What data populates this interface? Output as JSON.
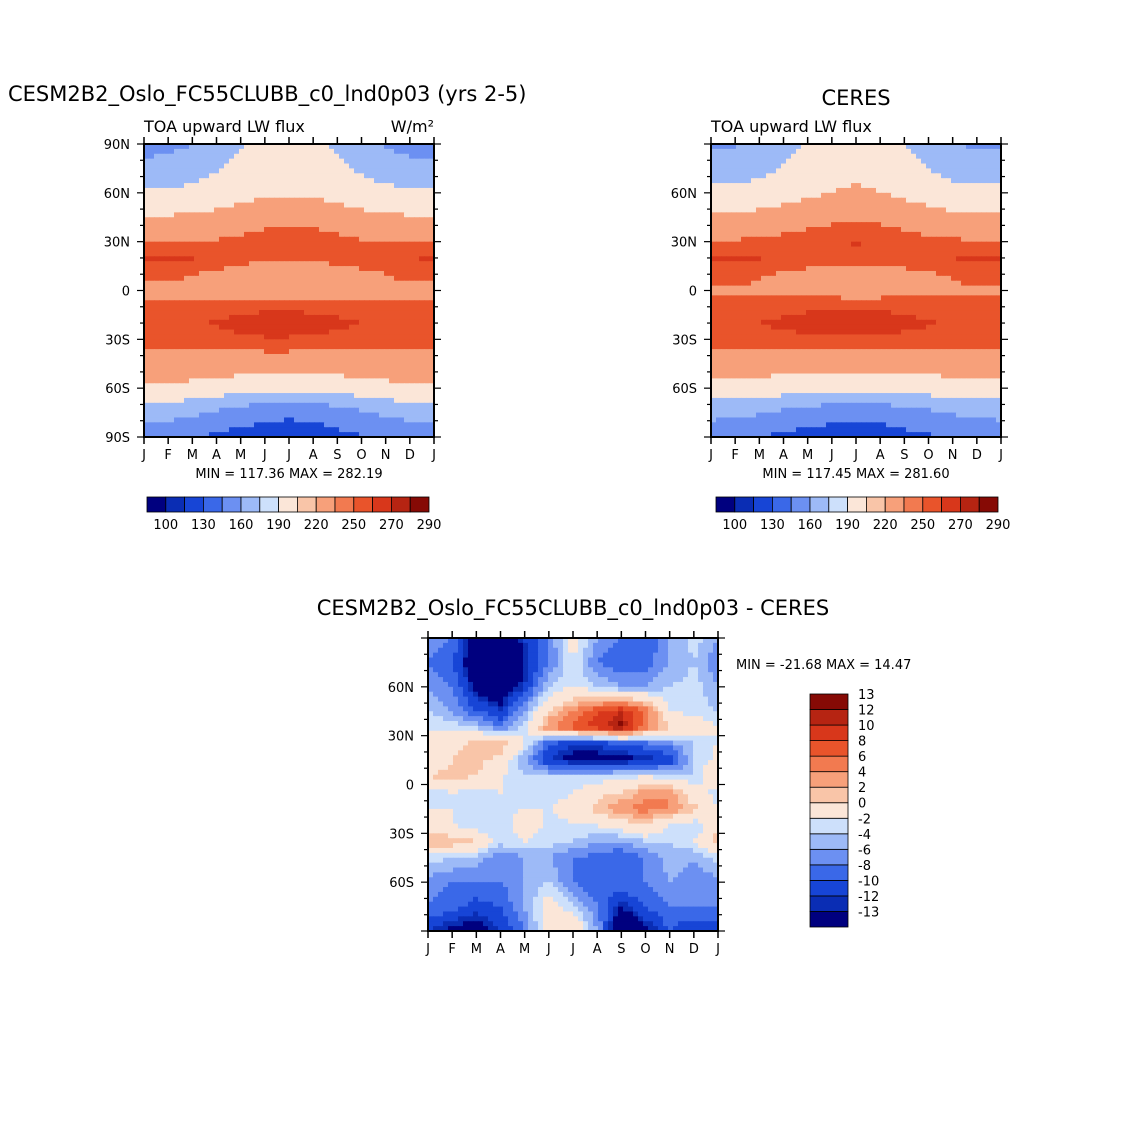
{
  "chart_data": [
    {
      "type": "heatmap",
      "id": "model",
      "title": "CESM2B2_Oslo_FC55CLUBB_c0_lnd0p03 (yrs 2-5)",
      "variable": "TOA upward LW flux",
      "units": "W/m²",
      "x_ticks": [
        "J",
        "F",
        "M",
        "A",
        "M",
        "J",
        "J",
        "A",
        "S",
        "O",
        "N",
        "D",
        "J"
      ],
      "y_ticks": [
        "90N",
        "60N",
        "30N",
        "0",
        "30S",
        "60S",
        "90S"
      ],
      "ylim": [
        -90,
        90
      ],
      "stats": "MIN = 117.36 MAX = 282.19",
      "levels": [
        "100",
        "130",
        "160",
        "190",
        "220",
        "250",
        "270",
        "290"
      ],
      "colors": [
        "#00007f",
        "#0a2db4",
        "#1745d6",
        "#3a68e8",
        "#6c90f2",
        "#9dbaf7",
        "#cde0fb",
        "#fbe6d8",
        "#f9c5a8",
        "#f7a07a",
        "#f27a50",
        "#e9542b",
        "#d8371b",
        "#b62412",
        "#860a05"
      ],
      "rows": [
        {
          "lat": 90,
          "value": [
            150,
            152,
            160,
            172,
            188,
            200,
            205,
            200,
            185,
            170,
            158,
            150,
            150
          ]
        },
        {
          "lat": 75,
          "value": [
            168,
            170,
            178,
            188,
            200,
            210,
            215,
            210,
            198,
            185,
            175,
            168,
            168
          ]
        },
        {
          "lat": 60,
          "value": [
            195,
            195,
            198,
            202,
            210,
            215,
            218,
            216,
            210,
            203,
            198,
            195,
            195
          ]
        },
        {
          "lat": 45,
          "value": [
            222,
            222,
            225,
            228,
            234,
            238,
            240,
            238,
            232,
            228,
            224,
            222,
            222
          ]
        },
        {
          "lat": 30,
          "value": [
            248,
            248,
            250,
            252,
            256,
            262,
            270,
            265,
            258,
            252,
            250,
            248,
            248
          ]
        },
        {
          "lat": 20,
          "value": [
            272,
            275,
            272,
            265,
            258,
            255,
            255,
            256,
            258,
            262,
            266,
            270,
            272
          ]
        },
        {
          "lat": 10,
          "value": [
            255,
            255,
            250,
            245,
            238,
            232,
            230,
            232,
            238,
            245,
            250,
            255,
            255
          ]
        },
        {
          "lat": 0,
          "value": [
            245,
            245,
            243,
            240,
            236,
            232,
            230,
            232,
            236,
            240,
            243,
            245,
            245
          ]
        },
        {
          "lat": -10,
          "value": [
            252,
            252,
            255,
            258,
            262,
            265,
            265,
            264,
            262,
            258,
            255,
            252,
            252
          ]
        },
        {
          "lat": -20,
          "value": [
            262,
            262,
            266,
            272,
            278,
            282,
            282,
            280,
            275,
            270,
            265,
            262,
            262
          ]
        },
        {
          "lat": -30,
          "value": [
            258,
            258,
            260,
            262,
            265,
            268,
            268,
            266,
            263,
            260,
            258,
            258,
            258
          ]
        },
        {
          "lat": -45,
          "value": [
            238,
            238,
            238,
            236,
            234,
            232,
            232,
            232,
            234,
            236,
            238,
            238,
            238
          ]
        },
        {
          "lat": -60,
          "value": [
            215,
            215,
            212,
            208,
            204,
            200,
            200,
            200,
            204,
            208,
            212,
            215,
            215
          ]
        },
        {
          "lat": -75,
          "value": [
            175,
            172,
            165,
            155,
            145,
            138,
            135,
            138,
            145,
            155,
            165,
            172,
            175
          ]
        },
        {
          "lat": -90,
          "value": [
            140,
            138,
            132,
            125,
            120,
            118,
            117,
            118,
            122,
            128,
            134,
            138,
            140
          ]
        }
      ]
    },
    {
      "type": "heatmap",
      "id": "obs",
      "title": "CERES",
      "variable": "TOA upward LW flux",
      "x_ticks": [
        "J",
        "F",
        "M",
        "A",
        "M",
        "J",
        "J",
        "A",
        "S",
        "O",
        "N",
        "D",
        "J"
      ],
      "y_ticks": [
        "60N",
        "30N",
        "0",
        "30S",
        "60S"
      ],
      "ylim": [
        -90,
        90
      ],
      "stats": "MIN = 117.45 MAX = 281.60",
      "levels": [
        "100",
        "130",
        "160",
        "190",
        "220",
        "250",
        "270",
        "290"
      ],
      "colors": [
        "#00007f",
        "#0a2db4",
        "#1745d6",
        "#3a68e8",
        "#6c90f2",
        "#9dbaf7",
        "#cde0fb",
        "#fbe6d8",
        "#f9c5a8",
        "#f7a07a",
        "#f27a50",
        "#e9542b",
        "#d8371b",
        "#b62412",
        "#860a05"
      ],
      "rows": [
        {
          "lat": 90,
          "value": [
            155,
            158,
            165,
            178,
            192,
            205,
            210,
            205,
            190,
            175,
            162,
            155,
            155
          ]
        },
        {
          "lat": 75,
          "value": [
            172,
            174,
            182,
            192,
            205,
            214,
            218,
            214,
            202,
            190,
            180,
            172,
            172
          ]
        },
        {
          "lat": 60,
          "value": [
            198,
            198,
            202,
            208,
            215,
            220,
            222,
            220,
            214,
            207,
            200,
            198,
            198
          ]
        },
        {
          "lat": 45,
          "value": [
            225,
            226,
            228,
            232,
            238,
            242,
            244,
            242,
            236,
            231,
            227,
            225,
            225
          ]
        },
        {
          "lat": 30,
          "value": [
            252,
            252,
            254,
            258,
            264,
            270,
            272,
            270,
            262,
            256,
            253,
            252,
            252
          ]
        },
        {
          "lat": 20,
          "value": [
            274,
            276,
            272,
            266,
            262,
            260,
            260,
            260,
            262,
            265,
            270,
            274,
            274
          ]
        },
        {
          "lat": 10,
          "value": [
            258,
            256,
            252,
            248,
            243,
            238,
            236,
            238,
            243,
            248,
            252,
            256,
            258
          ]
        },
        {
          "lat": 0,
          "value": [
            248,
            248,
            246,
            243,
            240,
            236,
            234,
            236,
            240,
            243,
            246,
            248,
            248
          ]
        },
        {
          "lat": -10,
          "value": [
            255,
            256,
            258,
            262,
            266,
            268,
            268,
            267,
            264,
            260,
            257,
            255,
            255
          ]
        },
        {
          "lat": -20,
          "value": [
            264,
            266,
            270,
            275,
            279,
            281,
            281,
            280,
            277,
            272,
            268,
            264,
            264
          ]
        },
        {
          "lat": -30,
          "value": [
            258,
            258,
            260,
            263,
            266,
            268,
            268,
            267,
            264,
            261,
            259,
            258,
            258
          ]
        },
        {
          "lat": -45,
          "value": [
            234,
            234,
            234,
            233,
            232,
            230,
            230,
            230,
            232,
            233,
            234,
            234,
            234
          ]
        },
        {
          "lat": -60,
          "value": [
            210,
            210,
            208,
            205,
            202,
            200,
            200,
            200,
            202,
            205,
            208,
            210,
            210
          ]
        },
        {
          "lat": -75,
          "value": [
            170,
            168,
            162,
            154,
            146,
            140,
            138,
            140,
            146,
            154,
            162,
            168,
            170
          ]
        },
        {
          "lat": -90,
          "value": [
            138,
            136,
            130,
            124,
            120,
            118,
            118,
            118,
            122,
            127,
            132,
            136,
            138
          ]
        }
      ]
    },
    {
      "type": "heatmap",
      "id": "diff",
      "title": "CESM2B2_Oslo_FC55CLUBB_c0_lnd0p03 - CERES",
      "x_ticks": [
        "J",
        "F",
        "M",
        "A",
        "M",
        "J",
        "J",
        "A",
        "S",
        "O",
        "N",
        "D",
        "J"
      ],
      "y_ticks": [
        "60N",
        "30N",
        "0",
        "30S",
        "60S"
      ],
      "ylim": [
        -90,
        90
      ],
      "stats": "MIN = -21.68 MAX =  14.47",
      "levels": [
        "-13",
        "-12",
        "-10",
        "-8",
        "-6",
        "-4",
        "-2",
        "0",
        "2",
        "4",
        "6",
        "8",
        "10",
        "12",
        "13"
      ],
      "colors": [
        "#00007f",
        "#0a2db4",
        "#1745d6",
        "#3a68e8",
        "#6c90f2",
        "#9dbaf7",
        "#cde0fb",
        "#fbe6d8",
        "#f9c5a8",
        "#f7a07a",
        "#f27a50",
        "#e9542b",
        "#d8371b",
        "#b62412",
        "#860a05"
      ],
      "rows": [
        {
          "lat": 90,
          "value": [
            -6,
            -8,
            -15,
            -16,
            -12,
            -8,
            0,
            -6,
            -8,
            -10,
            -6,
            -3,
            -6
          ]
        },
        {
          "lat": 75,
          "value": [
            -8,
            -10,
            -16,
            -18,
            -13,
            -8,
            -2,
            -8,
            -10,
            -9,
            -6,
            -4,
            -8
          ]
        },
        {
          "lat": 60,
          "value": [
            -6,
            -8,
            -14,
            -16,
            -12,
            -4,
            -2,
            -4,
            -6,
            -6,
            -4,
            -3,
            -6
          ]
        },
        {
          "lat": 45,
          "value": [
            -4,
            -6,
            -10,
            -12,
            -6,
            2,
            6,
            10,
            12,
            8,
            -2,
            -3,
            -4
          ]
        },
        {
          "lat": 35,
          "value": [
            -2,
            -3,
            -4,
            -8,
            -3,
            6,
            9,
            11,
            14,
            7,
            2,
            1,
            -2
          ]
        },
        {
          "lat": 25,
          "value": [
            -2,
            1,
            3,
            4,
            -2,
            -10,
            -12,
            -12,
            -10,
            -9,
            -7,
            -4,
            -2
          ]
        },
        {
          "lat": 15,
          "value": [
            -1,
            2,
            3,
            1,
            -6,
            -12,
            -14,
            -14,
            -14,
            -13,
            -12,
            -4,
            -1
          ]
        },
        {
          "lat": 5,
          "value": [
            2,
            3,
            2,
            -2,
            -4,
            -4,
            -4,
            -4,
            -3,
            -2,
            -3,
            -4,
            2
          ]
        },
        {
          "lat": -5,
          "value": [
            -3,
            -2,
            -3,
            -2,
            -4,
            -3,
            -2,
            1,
            2,
            5,
            6,
            -1,
            -3
          ]
        },
        {
          "lat": -15,
          "value": [
            -2,
            -2,
            -2,
            -3,
            -2,
            -2,
            -1,
            3,
            6,
            7,
            6,
            3,
            -2
          ]
        },
        {
          "lat": -25,
          "value": [
            0,
            -2,
            -4,
            -4,
            0,
            -3,
            -2,
            -2,
            0,
            2,
            -2,
            -4,
            0
          ]
        },
        {
          "lat": -35,
          "value": [
            4,
            4,
            2,
            -3,
            -2,
            -3,
            -4,
            -6,
            -6,
            -4,
            -4,
            -2,
            4
          ]
        },
        {
          "lat": -45,
          "value": [
            -3,
            -4,
            -5,
            -8,
            -6,
            -6,
            -8,
            -9,
            -10,
            -8,
            -5,
            -6,
            -3
          ]
        },
        {
          "lat": -60,
          "value": [
            -7,
            -8,
            -8,
            -8,
            -6,
            -4,
            -8,
            -10,
            -8,
            -8,
            -6,
            -7,
            -7
          ]
        },
        {
          "lat": -75,
          "value": [
            -8,
            -9,
            -11,
            -10,
            -6,
            0,
            -4,
            -8,
            -13,
            -10,
            -8,
            -8,
            -8
          ]
        },
        {
          "lat": -90,
          "value": [
            -12,
            -14,
            -15,
            -12,
            -8,
            0,
            2,
            -6,
            -18,
            -14,
            -10,
            -12,
            -12
          ]
        }
      ]
    }
  ]
}
